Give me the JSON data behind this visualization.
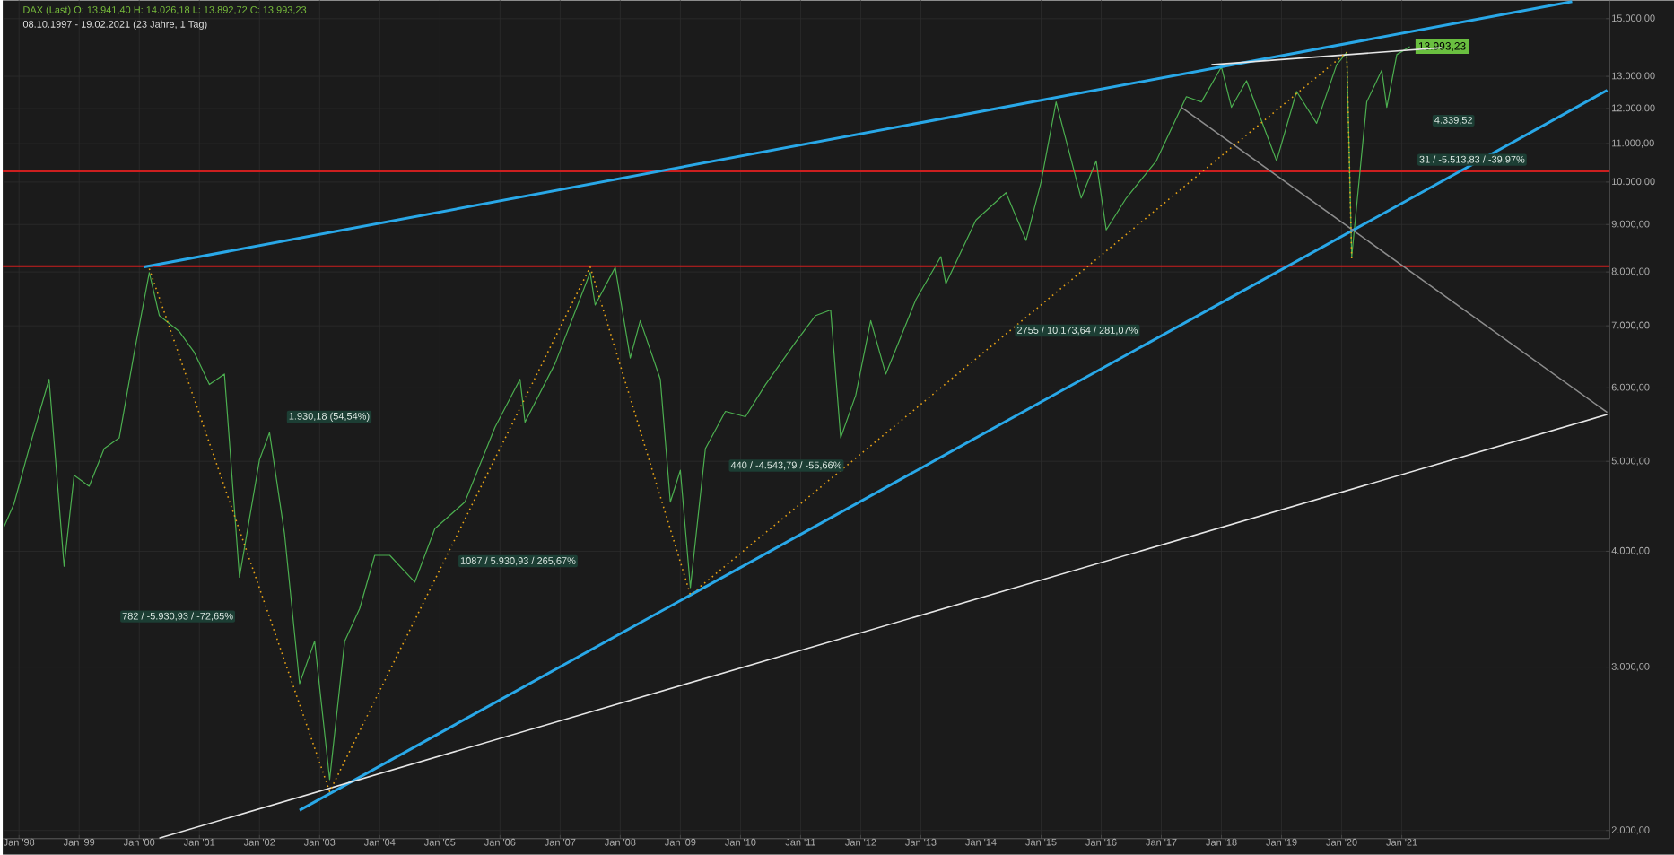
{
  "chart_data": {
    "type": "line",
    "title": "DAX (Last)  O: 13.941,40  H: 14.026,18  L: 13.892,72  C: 13.993,23",
    "subtitle": "08.10.1997 - 19.02.2021  (23 Jahre, 1 Tag)",
    "log": true,
    "grid": true,
    "xlim": [
      "1997-09-24",
      "2024-06-15"
    ],
    "ylim": [
      1960,
      15700
    ],
    "xticks": [
      {
        "value": "1998-01",
        "label": "Jan '98"
      },
      {
        "value": "1999-01",
        "label": "Jan '99"
      },
      {
        "value": "2000-01",
        "label": "Jan '00"
      },
      {
        "value": "2001-01",
        "label": "Jan '01"
      },
      {
        "value": "2002-01",
        "label": "Jan '02"
      },
      {
        "value": "2003-01",
        "label": "Jan '03"
      },
      {
        "value": "2004-01",
        "label": "Jan '04"
      },
      {
        "value": "2005-01",
        "label": "Jan '05"
      },
      {
        "value": "2006-01",
        "label": "Jan '06"
      },
      {
        "value": "2007-01",
        "label": "Jan '07"
      },
      {
        "value": "2008-01",
        "label": "Jan '08"
      },
      {
        "value": "2009-01",
        "label": "Jan '09"
      },
      {
        "value": "2010-01",
        "label": "Jan '10"
      },
      {
        "value": "2011-01",
        "label": "Jan '11"
      },
      {
        "value": "2012-01",
        "label": "Jan '12"
      },
      {
        "value": "2013-01",
        "label": "Jan '13"
      },
      {
        "value": "2014-01",
        "label": "Jan '14"
      },
      {
        "value": "2015-01",
        "label": "Jan '15"
      },
      {
        "value": "2016-01",
        "label": "Jan '16"
      },
      {
        "value": "2017-01",
        "label": "Jan '17"
      },
      {
        "value": "2018-01",
        "label": "Jan '18"
      },
      {
        "value": "2019-01",
        "label": "Jan '19"
      },
      {
        "value": "2020-01",
        "label": "Jan '20"
      },
      {
        "value": "2021-01",
        "label": "Jan '21"
      }
    ],
    "yticks": [
      {
        "value": 2000,
        "label": "2.000,00"
      },
      {
        "value": 3000,
        "label": "3.000,00"
      },
      {
        "value": 4000,
        "label": "4.000,00"
      },
      {
        "value": 5000,
        "label": "5.000,00"
      },
      {
        "value": 6000,
        "label": "6.000,00"
      },
      {
        "value": 7000,
        "label": "7.000,00"
      },
      {
        "value": 8000,
        "label": "8.000,00"
      },
      {
        "value": 9000,
        "label": "9.000,00"
      },
      {
        "value": 10000,
        "label": "10.000,00"
      },
      {
        "value": 11000,
        "label": "11.000,00"
      },
      {
        "value": 12000,
        "label": "12.000,00"
      },
      {
        "value": 13000,
        "label": "13.000,00"
      },
      {
        "value": 15000,
        "label": "15.000,00"
      }
    ],
    "series": [
      {
        "color": "#4caf50",
        "x": [
          "1997-10",
          "1997-12",
          "1998-03",
          "1998-07",
          "1998-10",
          "1998-12",
          "1999-03",
          "1999-06",
          "1999-09",
          "1999-12",
          "2000-03",
          "2000-05",
          "2000-09",
          "2000-12",
          "2001-03",
          "2001-06",
          "2001-09",
          "2002-01",
          "2002-03",
          "2002-06",
          "2002-09",
          "2002-12",
          "2003-03",
          "2003-06",
          "2003-09",
          "2003-12",
          "2004-03",
          "2004-08",
          "2004-12",
          "2005-06",
          "2005-12",
          "2006-05",
          "2006-06",
          "2006-12",
          "2007-07",
          "2007-08",
          "2007-12",
          "2008-03",
          "2008-05",
          "2008-09",
          "2008-11",
          "2009-01",
          "2009-03",
          "2009-06",
          "2009-10",
          "2010-02",
          "2010-06",
          "2010-12",
          "2011-04",
          "2011-07",
          "2011-09",
          "2011-12",
          "2012-03",
          "2012-06",
          "2012-12",
          "2013-05",
          "2013-06",
          "2013-12",
          "2014-06",
          "2014-10",
          "2015-01",
          "2015-04",
          "2015-09",
          "2015-12",
          "2016-02",
          "2016-06",
          "2016-12",
          "2017-06",
          "2017-09",
          "2018-01",
          "2018-03",
          "2018-06",
          "2018-12",
          "2019-04",
          "2019-08",
          "2019-12",
          "2020-02",
          "2020-03",
          "2020-06",
          "2020-09",
          "2020-10",
          "2020-12",
          "2021-02-19"
        ],
        "values": [
          4250,
          4500,
          5160,
          6130,
          3855,
          4830,
          4700,
          5160,
          5300,
          6550,
          7990,
          7180,
          6900,
          6550,
          6050,
          6210,
          3750,
          5020,
          5370,
          4175,
          2880,
          3200,
          2270,
          3200,
          3470,
          3960,
          3960,
          3705,
          4230,
          4520,
          5440,
          6130,
          5510,
          6375,
          7990,
          7370,
          8090,
          6460,
          7090,
          6130,
          4520,
          4890,
          3655,
          5160,
          5660,
          5585,
          6050,
          6720,
          7180,
          7280,
          5300,
          5890,
          7090,
          6210,
          7470,
          8310,
          7770,
          9100,
          9740,
          8650,
          10000,
          12200,
          9610,
          10540,
          8880,
          9610,
          10540,
          12360,
          12200,
          13310,
          12040,
          12860,
          10540,
          12520,
          11570,
          13380,
          13800,
          8310,
          12200,
          13200,
          12040,
          13720,
          13993.23
        ],
        "value_labels": [
          null,
          null,
          null,
          null,
          null,
          null,
          null,
          null,
          null,
          null,
          null,
          null,
          null,
          null,
          null,
          null,
          null,
          null,
          null,
          null,
          null,
          null,
          null,
          null,
          null,
          null,
          null,
          null,
          null,
          null,
          null,
          null,
          null,
          null,
          null,
          null,
          null,
          null,
          null,
          null,
          null,
          null,
          null,
          null,
          null,
          null,
          null,
          null,
          null,
          null,
          null,
          null,
          null,
          null,
          null,
          null,
          null,
          null,
          null,
          null,
          null,
          null,
          null,
          null,
          null,
          null,
          null,
          null,
          null,
          null,
          null,
          null,
          null,
          null,
          null,
          null,
          null,
          null,
          null,
          null,
          null,
          null,
          "13.993,23"
        ]
      },
      {
        "color": "#29a8e8",
        "x": [
          "2000-02",
          "2023-11"
        ],
        "values": [
          8100,
          15650
        ]
      },
      {
        "color": "#29a8e8",
        "x": [
          "2002-09",
          "2024-06"
        ],
        "values": [
          2103,
          12560
        ]
      },
      {
        "color": "#e6e6e6",
        "x": [
          "2000-05",
          "2024-06"
        ],
        "values": [
          1963,
          5617
        ]
      },
      {
        "color": "#8c8c8c",
        "x": [
          "2017-05",
          "2024-06"
        ],
        "values": [
          12040,
          5646
        ]
      },
      {
        "color": "#e6e6e6",
        "x": [
          "2017-11",
          "2021-09"
        ],
        "values": [
          13380,
          13960
        ]
      },
      {
        "color": "#e8a317",
        "line_style": "dotted",
        "x": [
          "2000-03",
          "2003-03",
          "2007-07",
          "2009-03",
          "2020-02",
          "2020-03"
        ],
        "values": [
          8065,
          2203,
          8100,
          3590,
          13800,
          8255
        ]
      }
    ],
    "ref_lines": [
      {
        "axis": "y",
        "value": 10270,
        "color": "#cc1f1f"
      },
      {
        "axis": "y",
        "value": 8115,
        "color": "#cc1f1f"
      }
    ],
    "annotations": [
      "1.930,18 (54,54%)",
      "782 / -5.930,93 / -72,65%",
      "1087 / 5.930,93 / 265,67%",
      "440 / -4.543,79 / -55,66%",
      "2755 / 10.173,64 / 281,07%",
      "31 / -5.513,83 / -39,97%",
      "4.339,52"
    ]
  }
}
